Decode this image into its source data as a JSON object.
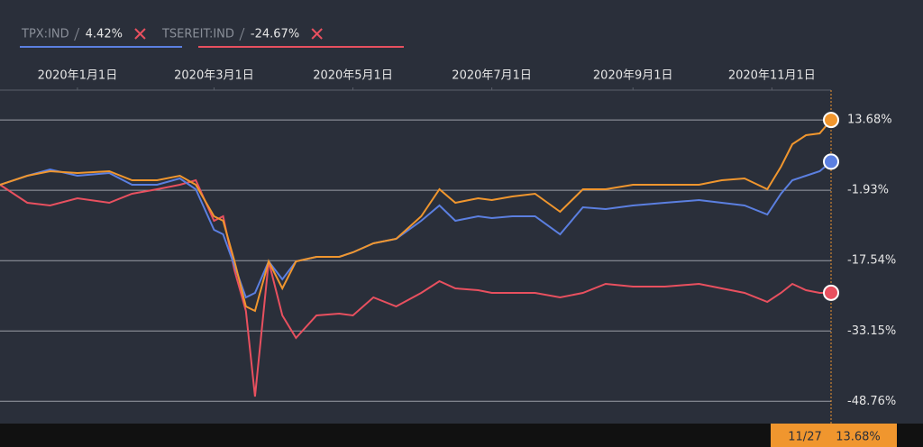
{
  "chart_data": {
    "type": "line",
    "x": [
      "2019-11-28",
      "2019-12-10",
      "2019-12-20",
      "2020-01-01",
      "2020-01-15",
      "2020-01-25",
      "2020-02-05",
      "2020-02-15",
      "2020-02-22",
      "2020-03-01",
      "2020-03-05",
      "2020-03-10",
      "2020-03-15",
      "2020-03-19",
      "2020-03-25",
      "2020-03-31",
      "2020-04-06",
      "2020-04-15",
      "2020-04-25",
      "2020-05-01",
      "2020-05-10",
      "2020-05-20",
      "2020-05-31",
      "2020-06-08",
      "2020-06-15",
      "2020-06-25",
      "2020-07-01",
      "2020-07-10",
      "2020-07-20",
      "2020-07-31",
      "2020-08-10",
      "2020-08-20",
      "2020-09-01",
      "2020-09-15",
      "2020-09-30",
      "2020-10-10",
      "2020-10-20",
      "2020-10-30",
      "2020-11-05",
      "2020-11-10",
      "2020-11-16",
      "2020-11-22",
      "2020-11-27"
    ],
    "series": [
      {
        "color": "#f0962e",
        "values": [
          -0.7,
          1.3,
          2.3,
          1.9,
          2.3,
          0.3,
          0.3,
          1.3,
          -0.7,
          -7.7,
          -8.7,
          -17.7,
          -27.7,
          -28.7,
          -17.7,
          -23.7,
          -17.7,
          -16.7,
          -16.7,
          -15.7,
          -13.7,
          -12.7,
          -7.7,
          -1.7,
          -4.7,
          -3.7,
          -4.1,
          -3.3,
          -2.7,
          -6.7,
          -1.7,
          -1.7,
          -0.7,
          -0.7,
          -0.7,
          0.3,
          0.7,
          -1.7,
          3.3,
          8.3,
          10.3,
          10.7,
          13.68
        ],
        "value_labels": [
          null,
          null,
          null,
          null,
          null,
          null,
          null,
          null,
          null,
          null,
          null,
          null,
          null,
          null,
          null,
          null,
          null,
          null,
          null,
          null,
          null,
          null,
          null,
          null,
          null,
          null,
          null,
          null,
          null,
          null,
          null,
          null,
          null,
          null,
          null,
          null,
          null,
          null,
          null,
          null,
          null,
          null,
          "13.68%"
        ]
      },
      {
        "name": "TPX:IND",
        "color": "#5b7fe0",
        "values": [
          -0.7,
          1.3,
          2.7,
          1.3,
          1.9,
          -0.7,
          -0.7,
          0.7,
          -1.7,
          -10.7,
          -11.7,
          -18.7,
          -25.7,
          -24.7,
          -17.7,
          -21.7,
          -17.7,
          -16.7,
          -16.7,
          -15.7,
          -13.7,
          -12.7,
          -8.7,
          -5.3,
          -8.7,
          -7.7,
          -8.1,
          -7.7,
          -7.7,
          -11.7,
          -5.7,
          -6.1,
          -5.3,
          -4.7,
          -4.1,
          -4.7,
          -5.3,
          -7.3,
          -2.7,
          0.3,
          1.3,
          2.3,
          4.42
        ],
        "value_labels": [
          null,
          null,
          null,
          null,
          null,
          null,
          null,
          null,
          null,
          null,
          null,
          null,
          null,
          null,
          null,
          null,
          null,
          null,
          null,
          null,
          null,
          null,
          null,
          null,
          null,
          null,
          null,
          null,
          null,
          null,
          null,
          null,
          null,
          null,
          null,
          null,
          null,
          null,
          null,
          null,
          null,
          null,
          "4.42%"
        ]
      },
      {
        "name": "TSEREIT:IND",
        "color": "#e8505f",
        "values": [
          -0.7,
          -4.7,
          -5.3,
          -3.7,
          -4.7,
          -2.7,
          -1.7,
          -0.7,
          0.3,
          -8.7,
          -7.7,
          -19.7,
          -28.7,
          -47.7,
          -17.7,
          -29.7,
          -34.7,
          -29.7,
          -29.3,
          -29.7,
          -25.7,
          -27.7,
          -24.7,
          -22.1,
          -23.7,
          -24.1,
          -24.7,
          -24.7,
          -24.7,
          -25.7,
          -24.7,
          -22.7,
          -23.3,
          -23.3,
          -22.7,
          -23.7,
          -24.7,
          -26.7,
          -24.7,
          -22.7,
          -24.1,
          -24.7,
          -24.67
        ],
        "value_labels": [
          null,
          null,
          null,
          null,
          null,
          null,
          null,
          null,
          null,
          null,
          null,
          null,
          null,
          null,
          null,
          null,
          null,
          null,
          null,
          null,
          null,
          null,
          null,
          null,
          null,
          null,
          null,
          null,
          null,
          null,
          null,
          null,
          null,
          null,
          null,
          null,
          null,
          null,
          null,
          null,
          null,
          null,
          "-24.67%"
        ]
      }
    ],
    "xlim": [
      "2019-11-28",
      "2020-11-27"
    ],
    "xticks": [
      {
        "value": "2020-01-01",
        "label": "2020年1月1日"
      },
      {
        "value": "2020-03-01",
        "label": "2020年3月1日"
      },
      {
        "value": "2020-05-01",
        "label": "2020年5月1日"
      },
      {
        "value": "2020-07-01",
        "label": "2020年7月1日"
      },
      {
        "value": "2020-09-01",
        "label": "2020年9月1日"
      },
      {
        "value": "2020-11-01",
        "label": "2020年11月1日"
      }
    ],
    "ylim": [
      -52.1,
      20.3
    ],
    "yticks": [
      {
        "value": 13.68,
        "label": "13.68%"
      },
      {
        "value": -1.93,
        "label": "-1.93%"
      },
      {
        "value": -17.54,
        "label": "-17.54%"
      },
      {
        "value": -33.15,
        "label": "-33.15%"
      },
      {
        "value": -48.76,
        "label": "-48.76%"
      }
    ],
    "grid": true,
    "crosshair_label": "11/27"
  }
}
